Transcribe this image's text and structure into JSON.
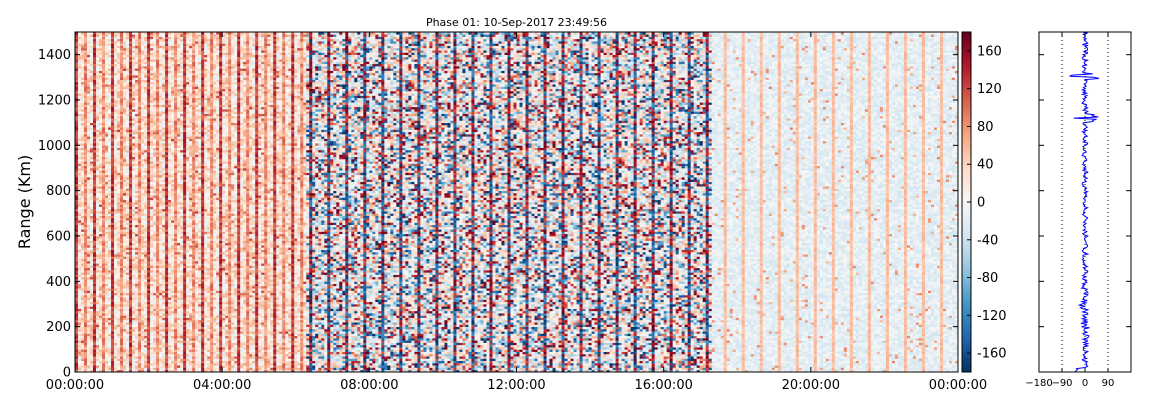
{
  "chart_data": [
    {
      "type": "heatmap",
      "title": "Phase 01: 10-Sep-2017 23:49:56",
      "xlabel": "",
      "ylabel": "Range (Km)",
      "x_ticks": [
        "00:00:00",
        "04:00:00",
        "08:00:00",
        "12:00:00",
        "16:00:00",
        "20:00:00",
        "00:00:00"
      ],
      "xlim_hours": [
        0,
        24
      ],
      "y_ticks": [
        0,
        200,
        400,
        600,
        800,
        1000,
        1200,
        1400
      ],
      "ylim": [
        0,
        1500
      ],
      "colorbar": {
        "ticks": [
          -160,
          -120,
          -80,
          -40,
          0,
          40,
          80,
          120,
          160
        ],
        "range": [
          -180,
          180
        ],
        "colormap": [
          "#053061",
          "#2166ac",
          "#4393c3",
          "#92c5de",
          "#d1e5f0",
          "#f7f7f7",
          "#fddbc7",
          "#f4a582",
          "#d6604d",
          "#b2182b",
          "#67001f"
        ]
      },
      "regimes": [
        {
          "hours": [
            0,
            6.3
          ],
          "description": "moderate positive phase, periodic high stripes"
        },
        {
          "hours": [
            6.3,
            17.3
          ],
          "description": "noisy, full-range phase"
        },
        {
          "hours": [
            17.3,
            24
          ],
          "description": "near-zero phase with periodic light-orange stripes"
        }
      ]
    },
    {
      "type": "line",
      "xlabel": "",
      "ylabel": "",
      "x_ticks": [
        -180,
        -90,
        0,
        90
      ],
      "xlim": [
        -180,
        180
      ],
      "ylim": [
        0,
        1500
      ],
      "reference_lines_x": [
        -90,
        0,
        90
      ],
      "series": [
        {
          "color": "#0000ff"
        }
      ],
      "description": "mean phase vs range, hovering near 0 with spikes around 1120-1320 km and near 170-400 km"
    }
  ]
}
